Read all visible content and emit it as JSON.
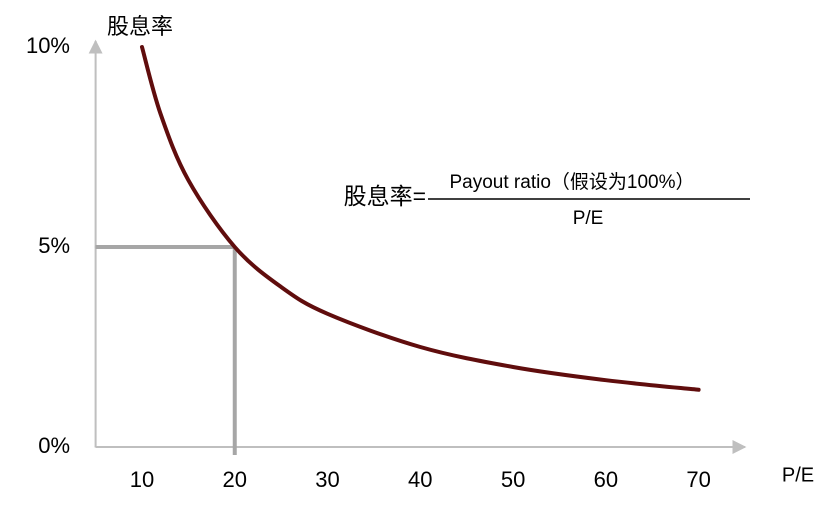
{
  "chart_data": {
    "type": "line",
    "y_label": "股息率",
    "x_label": "P/E",
    "formula": {
      "lhs": "股息率=",
      "numerator": "Payout ratio（假设为100%）",
      "denominator": "P/E"
    },
    "x": [
      10,
      12,
      15,
      20,
      25,
      30,
      40,
      50,
      60,
      70
    ],
    "values": [
      10,
      8.33,
      6.67,
      5,
      4,
      3.33,
      2.5,
      2,
      1.67,
      1.43
    ],
    "color": "#600d0d",
    "highlight": {
      "x": 20,
      "y": 5,
      "color": "#a6a6a6"
    },
    "xlim": [
      5,
      75
    ],
    "xticks": [
      10,
      20,
      30,
      40,
      50,
      60,
      70
    ],
    "ylim": [
      0,
      10
    ],
    "yticks": [
      {
        "value": 0,
        "label": "0%"
      },
      {
        "value": 5,
        "label": "5%"
      },
      {
        "value": 10,
        "label": "10%"
      }
    ]
  }
}
